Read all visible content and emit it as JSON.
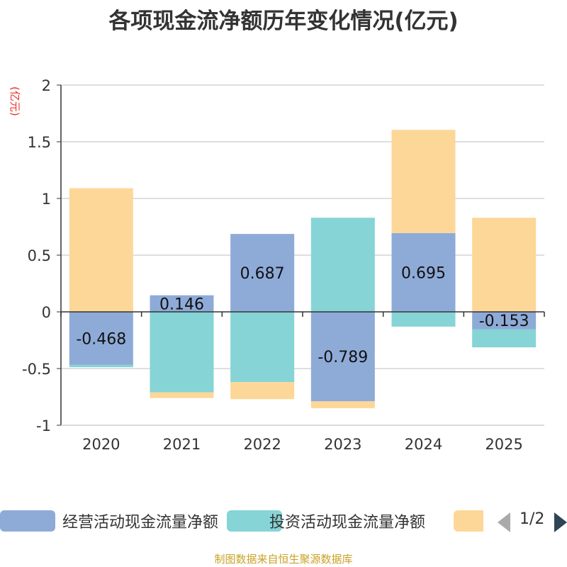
{
  "chart_data": {
    "type": "bar",
    "stacked": true,
    "title": "各项现金流净额历年变化情况(亿元)",
    "ylabel": "(亿元)",
    "ylim": [
      -1,
      2
    ],
    "yticks": [
      "2",
      "1.5",
      "1",
      "0.5",
      "0",
      "-0.5",
      "-1"
    ],
    "grid": true,
    "legend_position": "bottom",
    "categories": [
      "2020",
      "2021",
      "2022",
      "2023",
      "2024",
      "2025"
    ],
    "series": [
      {
        "name": "经营活动现金流量净额",
        "color": "#8eabd8",
        "values": [
          -0.468,
          0.146,
          0.687,
          -0.789,
          0.695,
          -0.153
        ],
        "labels": [
          "-0.468",
          "0.146",
          "0.687",
          "-0.789",
          "0.695",
          "-0.153"
        ]
      },
      {
        "name": "投资活动现金流量净额",
        "color": "#86d4d6",
        "values": [
          -0.02,
          -0.71,
          -0.62,
          0.83,
          -0.13,
          -0.16
        ]
      },
      {
        "name": "",
        "color": "#fdd797",
        "values": [
          1.09,
          -0.05,
          -0.15,
          -0.06,
          0.91,
          0.83
        ]
      }
    ]
  },
  "legend": {
    "items": [
      "经营活动现金流量净额",
      "投资活动现金流量净额",
      ""
    ],
    "page_indicator": "1/2"
  },
  "source_text": "制图数据来自恒生聚源数据库"
}
